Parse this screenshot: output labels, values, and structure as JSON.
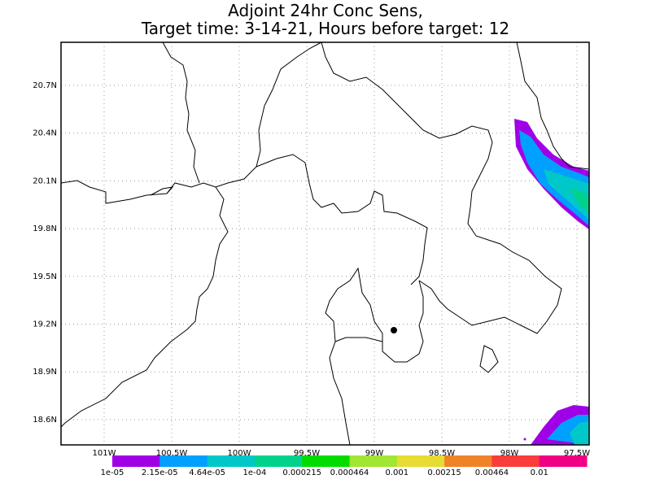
{
  "title": [
    "Adjoint 24hr Conc Sens,",
    "Target time: 3-14-21, Hours before target: 12"
  ],
  "map": {
    "lat_labels": [
      "20.7N",
      "20.4N",
      "20.1N",
      "19.8N",
      "19.5N",
      "19.2N",
      "18.9N",
      "18.6N"
    ],
    "lon_labels": [
      "101W",
      "100.5W",
      "100W",
      "99.5W",
      "99W",
      "98.5W",
      "98W",
      "97.5W"
    ],
    "grid": true
  },
  "colorbar": {
    "colors": [
      "#a000e6",
      "#00a0ff",
      "#00c8c8",
      "#00d28c",
      "#00dc00",
      "#a0e632",
      "#e6dc32",
      "#f08228",
      "#fa3c3c",
      "#f00082"
    ],
    "labels": [
      "1e-05",
      "2.15e-05",
      "4.64e-05",
      "1e-04",
      "0.000215",
      "0.000464",
      "0.001",
      "0.00215",
      "0.00464",
      "0.01"
    ]
  }
}
